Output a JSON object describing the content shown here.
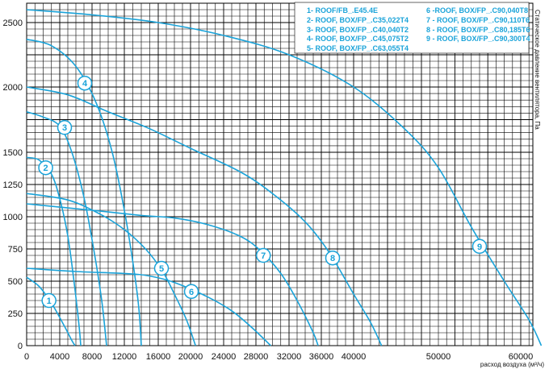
{
  "chart_data": {
    "type": "line",
    "xlabel": "расход воздуха (м³/ч)",
    "ylabel": "Статическое давление вентилятора, Па",
    "xlim": [
      0,
      65000
    ],
    "ylim": [
      0,
      2600
    ],
    "x_ticks": [
      0,
      4000,
      8000,
      12000,
      16000,
      20000,
      24000,
      28000,
      32000,
      36000,
      40000,
      50000,
      60000
    ],
    "y_ticks": [
      0,
      250,
      500,
      750,
      1000,
      1250,
      1500,
      2000,
      2500
    ],
    "grid": true,
    "legend_position": "top-right",
    "colors": {
      "curve": "#1aa3d9",
      "grid": "#000000",
      "badge_fill": "#ffffff"
    },
    "legend": [
      "1- ROOF/FB_.E45.4E",
      "2- ROOF, BOX/FP_.C35,022T4",
      "3- ROOF, BOX/FP_.C40,040T2",
      "4- ROOF, BOX/FP_.C45,075T2",
      "5- ROOF, BOX/FP_.C63,055T4",
      "6 -ROOF, BOX/FP_.C90,040T8",
      "7 - ROOF, BOX/FP_.C90,110T6",
      "8 - ROOF, BOX/FP_.C80,185T6",
      "9 - ROOF, BOX/FP_.C90,300T4"
    ],
    "series": [
      {
        "label": "1",
        "label_at": [
          2700,
          350
        ],
        "points": [
          [
            0,
            530
          ],
          [
            1500,
            460
          ],
          [
            3000,
            330
          ],
          [
            4500,
            160
          ],
          [
            5500,
            40
          ],
          [
            5900,
            0
          ]
        ]
      },
      {
        "label": "2",
        "label_at": [
          2300,
          1380
        ],
        "points": [
          [
            0,
            1460
          ],
          [
            1500,
            1440
          ],
          [
            3000,
            1330
          ],
          [
            4000,
            1140
          ],
          [
            5000,
            850
          ],
          [
            5800,
            480
          ],
          [
            6400,
            150
          ],
          [
            6600,
            0
          ]
        ]
      },
      {
        "label": "3",
        "label_at": [
          4600,
          1690
        ],
        "points": [
          [
            0,
            1810
          ],
          [
            2000,
            1770
          ],
          [
            4000,
            1700
          ],
          [
            5500,
            1500
          ],
          [
            7000,
            1150
          ],
          [
            8200,
            750
          ],
          [
            9200,
            350
          ],
          [
            9800,
            0
          ]
        ]
      },
      {
        "label": "4",
        "label_at": [
          7100,
          2030
        ],
        "points": [
          [
            0,
            2370
          ],
          [
            3000,
            2320
          ],
          [
            6000,
            2160
          ],
          [
            8500,
            1880
          ],
          [
            10500,
            1500
          ],
          [
            12000,
            1050
          ],
          [
            13000,
            650
          ],
          [
            13700,
            300
          ],
          [
            14000,
            0
          ]
        ]
      },
      {
        "label": "5",
        "label_at": [
          16400,
          600
        ],
        "points": [
          [
            0,
            1180
          ],
          [
            5000,
            1130
          ],
          [
            9000,
            1020
          ],
          [
            12000,
            900
          ],
          [
            14500,
            750
          ],
          [
            16500,
            580
          ],
          [
            18000,
            400
          ],
          [
            19500,
            200
          ],
          [
            20600,
            0
          ]
        ]
      },
      {
        "label": "6",
        "label_at": [
          20100,
          420
        ],
        "points": [
          [
            0,
            600
          ],
          [
            6000,
            575
          ],
          [
            12000,
            560
          ],
          [
            15000,
            540
          ],
          [
            18000,
            490
          ],
          [
            22000,
            380
          ],
          [
            25000,
            270
          ],
          [
            27500,
            140
          ],
          [
            29800,
            0
          ]
        ]
      },
      {
        "label": "7",
        "label_at": [
          28900,
          700
        ],
        "points": [
          [
            0,
            1100
          ],
          [
            8000,
            1050
          ],
          [
            14000,
            1010
          ],
          [
            18000,
            990
          ],
          [
            22000,
            940
          ],
          [
            26000,
            850
          ],
          [
            28500,
            740
          ],
          [
            31000,
            560
          ],
          [
            33000,
            350
          ],
          [
            35000,
            100
          ],
          [
            35600,
            0
          ]
        ]
      },
      {
        "label": "8",
        "label_at": [
          37400,
          680
        ],
        "points": [
          [
            0,
            2000
          ],
          [
            5000,
            1940
          ],
          [
            10000,
            1810
          ],
          [
            15000,
            1680
          ],
          [
            20000,
            1530
          ],
          [
            26000,
            1350
          ],
          [
            30000,
            1180
          ],
          [
            34000,
            960
          ],
          [
            37000,
            720
          ],
          [
            40000,
            400
          ],
          [
            42000,
            180
          ],
          [
            43300,
            0
          ]
        ]
      },
      {
        "label": "9",
        "label_at": [
          55000,
          770
        ],
        "points": [
          [
            0,
            2600
          ],
          [
            8000,
            2560
          ],
          [
            16000,
            2500
          ],
          [
            24000,
            2400
          ],
          [
            32000,
            2250
          ],
          [
            40000,
            2000
          ],
          [
            46000,
            1680
          ],
          [
            50000,
            1380
          ],
          [
            54000,
            920
          ],
          [
            58000,
            500
          ],
          [
            61000,
            200
          ],
          [
            62500,
            0
          ]
        ]
      }
    ]
  }
}
